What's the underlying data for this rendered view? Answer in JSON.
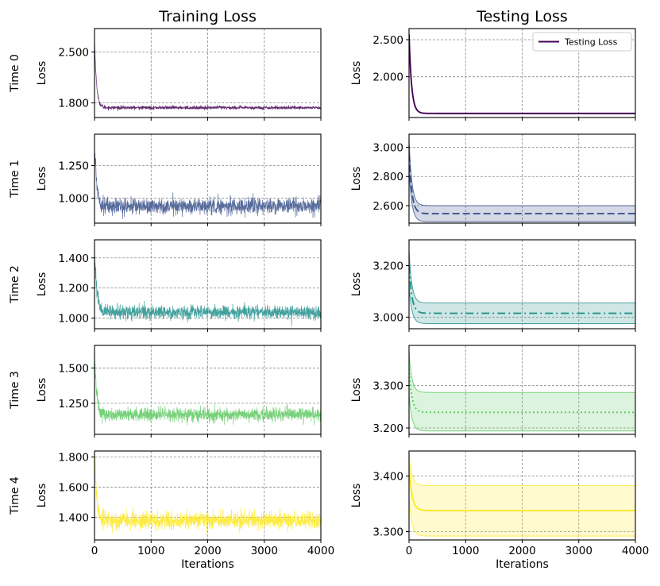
{
  "figure": {
    "column_titles": [
      "Training Loss",
      "Testing Loss"
    ],
    "row_labels": [
      "Time 0",
      "Time 1",
      "Time 2",
      "Time 3",
      "Time 4"
    ]
  },
  "chart_data": [
    {
      "type": "line",
      "column": "Training Loss",
      "row": "Time 0",
      "ylabel": "Loss",
      "xlabel": "",
      "xlim": [
        0,
        4000
      ],
      "ylim": [
        1.6,
        2.82
      ],
      "xticks": [
        0,
        1000,
        2000,
        3000,
        4000
      ],
      "show_xtick_labels": false,
      "yticks": [
        1.8,
        2.5
      ],
      "ytick_labels": [
        "1.800",
        "2.500"
      ],
      "grid": true,
      "color": "#440154",
      "series": [
        {
          "style": "solid",
          "kind": "noisy",
          "start": 2.68,
          "plateau": 1.735,
          "noise": 0.012,
          "decay_iters": 35
        }
      ]
    },
    {
      "type": "line",
      "column": "Testing Loss",
      "row": "Time 0",
      "ylabel": "Loss",
      "xlabel": "",
      "xlim": [
        0,
        4000
      ],
      "ylim": [
        1.45,
        2.65
      ],
      "xticks": [
        0,
        1000,
        2000,
        3000,
        4000
      ],
      "show_xtick_labels": false,
      "yticks": [
        2.0,
        2.5
      ],
      "ytick_labels": [
        "2.000",
        "2.500"
      ],
      "grid": true,
      "color": "#440154",
      "legend": {
        "label": "Testing Loss",
        "placement": "upper-right"
      },
      "series": [
        {
          "name": "Testing Loss",
          "style": "solid",
          "kind": "smooth",
          "start": 2.57,
          "plateau": 1.505,
          "decay_iters": 45
        }
      ]
    },
    {
      "type": "line",
      "column": "Training Loss",
      "row": "Time 1",
      "ylabel": "Loss",
      "xlabel": "",
      "xlim": [
        0,
        4000
      ],
      "ylim": [
        0.81,
        1.49
      ],
      "xticks": [
        0,
        1000,
        2000,
        3000,
        4000
      ],
      "show_xtick_labels": false,
      "yticks": [
        1.0,
        1.25
      ],
      "ytick_labels": [
        "1.000",
        "1.250"
      ],
      "grid": true,
      "color": "#3b528b",
      "series": [
        {
          "style": "solid",
          "kind": "noisy",
          "start": 1.42,
          "plateau": 0.94,
          "noise": 0.03,
          "decay_iters": 40
        }
      ]
    },
    {
      "type": "line",
      "column": "Testing Loss",
      "row": "Time 1",
      "ylabel": "Loss",
      "xlabel": "",
      "xlim": [
        0,
        4000
      ],
      "ylim": [
        2.48,
        3.09
      ],
      "xticks": [
        0,
        1000,
        2000,
        3000,
        4000
      ],
      "show_xtick_labels": false,
      "yticks": [
        2.6,
        2.8,
        3.0
      ],
      "ytick_labels": [
        "2.600",
        "2.800",
        "3.000"
      ],
      "grid": true,
      "color": "#3b528b",
      "series": [
        {
          "style": "dashed",
          "kind": "band",
          "start": 2.95,
          "mean": 2.545,
          "upper": 2.6,
          "lower": 2.49,
          "start_upper": 3.05,
          "start_lower": 2.85,
          "decay_iters": 50
        }
      ]
    },
    {
      "type": "line",
      "column": "Training Loss",
      "row": "Time 2",
      "ylabel": "Loss",
      "xlabel": "",
      "xlim": [
        0,
        4000
      ],
      "ylim": [
        0.93,
        1.52
      ],
      "xticks": [
        0,
        1000,
        2000,
        3000,
        4000
      ],
      "show_xtick_labels": false,
      "yticks": [
        1.0,
        1.2,
        1.4
      ],
      "ytick_labels": [
        "1.000",
        "1.200",
        "1.400"
      ],
      "grid": true,
      "color": "#21918c",
      "series": [
        {
          "style": "solid",
          "kind": "noisy",
          "start": 1.47,
          "plateau": 1.04,
          "noise": 0.022,
          "decay_iters": 40
        }
      ]
    },
    {
      "type": "line",
      "column": "Testing Loss",
      "row": "Time 2",
      "ylabel": "Loss",
      "xlabel": "",
      "xlim": [
        0,
        4000
      ],
      "ylim": [
        2.955,
        3.3
      ],
      "xticks": [
        0,
        1000,
        2000,
        3000,
        4000
      ],
      "show_xtick_labels": false,
      "yticks": [
        3.0,
        3.2
      ],
      "ytick_labels": [
        "3.000",
        "3.200"
      ],
      "grid": true,
      "color": "#21918c",
      "series": [
        {
          "style": "dashdot",
          "kind": "band",
          "start": 3.2,
          "mean": 3.015,
          "upper": 3.055,
          "lower": 2.975,
          "start_upper": 3.26,
          "start_lower": 3.12,
          "decay_iters": 50
        }
      ]
    },
    {
      "type": "line",
      "column": "Training Loss",
      "row": "Time 3",
      "ylabel": "Loss",
      "xlabel": "",
      "xlim": [
        0,
        4000
      ],
      "ylim": [
        1.03,
        1.66
      ],
      "xticks": [
        0,
        1000,
        2000,
        3000,
        4000
      ],
      "show_xtick_labels": false,
      "yticks": [
        1.25,
        1.5
      ],
      "ytick_labels": [
        "1.250",
        "1.500"
      ],
      "grid": true,
      "color": "#5ec962",
      "series": [
        {
          "style": "solid",
          "kind": "noisy",
          "start": 1.6,
          "plateau": 1.17,
          "noise": 0.024,
          "decay_iters": 40
        }
      ]
    },
    {
      "type": "line",
      "column": "Testing Loss",
      "row": "Time 3",
      "ylabel": "Loss",
      "xlabel": "",
      "xlim": [
        0,
        4000
      ],
      "ylim": [
        3.185,
        3.395
      ],
      "xticks": [
        0,
        1000,
        2000,
        3000,
        4000
      ],
      "show_xtick_labels": false,
      "yticks": [
        3.2,
        3.3
      ],
      "ytick_labels": [
        "3.200",
        "3.300"
      ],
      "grid": true,
      "color": "#5ec962",
      "series": [
        {
          "style": "dotted",
          "kind": "band",
          "start": 3.34,
          "mean": 3.237,
          "upper": 3.284,
          "lower": 3.193,
          "start_upper": 3.38,
          "start_lower": 3.28,
          "decay_iters": 50
        }
      ]
    },
    {
      "type": "line",
      "column": "Training Loss",
      "row": "Time 4",
      "ylabel": "Loss",
      "xlabel": "Iterations",
      "xlim": [
        0,
        4000
      ],
      "ylim": [
        1.25,
        1.84
      ],
      "xticks": [
        0,
        1000,
        2000,
        3000,
        4000
      ],
      "xtick_labels": [
        "0",
        "1000",
        "2000",
        "3000",
        "4000"
      ],
      "show_xtick_labels": true,
      "yticks": [
        1.4,
        1.6,
        1.8
      ],
      "ytick_labels": [
        "1.400",
        "1.600",
        "1.800"
      ],
      "grid": true,
      "color": "#fde725",
      "series": [
        {
          "style": "solid",
          "kind": "noisy",
          "start": 1.8,
          "plateau": 1.38,
          "noise": 0.028,
          "decay_iters": 40
        }
      ]
    },
    {
      "type": "line",
      "column": "Testing Loss",
      "row": "Time 4",
      "ylabel": "Loss",
      "xlabel": "Iterations",
      "xlim": [
        0,
        4000
      ],
      "ylim": [
        3.285,
        3.445
      ],
      "xticks": [
        0,
        1000,
        2000,
        3000,
        4000
      ],
      "xtick_labels": [
        "0",
        "1000",
        "2000",
        "3000",
        "4000"
      ],
      "show_xtick_labels": true,
      "yticks": [
        3.3,
        3.4
      ],
      "ytick_labels": [
        "3.300",
        "3.400"
      ],
      "grid": true,
      "color": "#fde725",
      "series": [
        {
          "style": "solid",
          "kind": "band",
          "start": 3.42,
          "mean": 3.338,
          "upper": 3.383,
          "lower": 3.292,
          "start_upper": 3.44,
          "start_lower": 3.36,
          "decay_iters": 50
        }
      ]
    }
  ]
}
